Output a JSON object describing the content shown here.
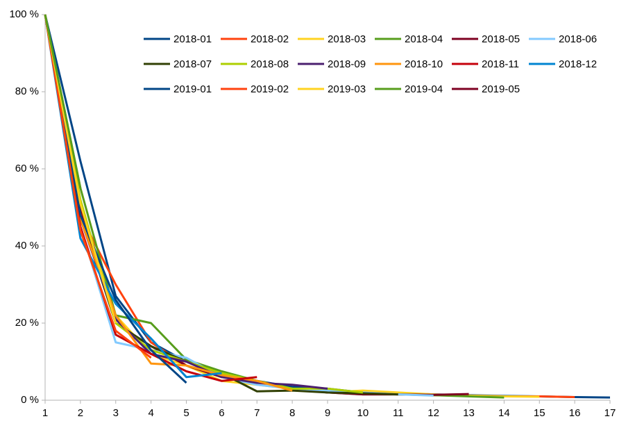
{
  "chart_data": {
    "type": "line",
    "x": [
      1,
      2,
      3,
      4,
      5,
      6,
      7,
      8,
      9,
      10,
      11,
      12,
      13,
      14,
      15,
      16,
      17
    ],
    "xlim": [
      1,
      17
    ],
    "xticks": [
      1,
      2,
      3,
      4,
      5,
      6,
      7,
      8,
      9,
      10,
      11,
      12,
      13,
      14,
      15,
      16,
      17
    ],
    "ylim": [
      0,
      100
    ],
    "yticks": [
      {
        "value": 0,
        "label": "0 %"
      },
      {
        "value": 20,
        "label": "20 %"
      },
      {
        "value": 40,
        "label": "40 %"
      },
      {
        "value": 60,
        "label": "60 %"
      },
      {
        "value": 80,
        "label": "80 %"
      },
      {
        "value": 100,
        "label": "100 %"
      }
    ],
    "grid": false,
    "legend": "top-right",
    "series": [
      {
        "name": "2018-01",
        "color": "#004586",
        "values": [
          100,
          62,
          27,
          15,
          10,
          7,
          5,
          3.5,
          3,
          2,
          1.8,
          1.5,
          1.3,
          1.1,
          1,
          0.8,
          0.7
        ]
      },
      {
        "name": "2018-02",
        "color": "#ff420e",
        "values": [
          100,
          48,
          30,
          15,
          9,
          6,
          4.5,
          3,
          2,
          1.8,
          1.5,
          1.3,
          1.2,
          1,
          1,
          0.8,
          null
        ]
      },
      {
        "name": "2018-03",
        "color": "#ffd320",
        "values": [
          100,
          50,
          22,
          12,
          9,
          5,
          4,
          3,
          2,
          2.5,
          2,
          1.5,
          1.2,
          1,
          0.9,
          null,
          null
        ]
      },
      {
        "name": "2018-04",
        "color": "#579d1c",
        "values": [
          100,
          55,
          22,
          20,
          10.5,
          7.5,
          5,
          3,
          2,
          1.5,
          1.5,
          1.3,
          1,
          0.7,
          null,
          null,
          null
        ]
      },
      {
        "name": "2018-05",
        "color": "#7e0021",
        "values": [
          100,
          50,
          20,
          14,
          9,
          6,
          5,
          3,
          2,
          1.5,
          1.5,
          1.4,
          1.6,
          null,
          null,
          null,
          null
        ]
      },
      {
        "name": "2018-06",
        "color": "#83caff",
        "values": [
          100,
          45,
          15,
          13,
          11,
          6,
          4,
          3,
          2.5,
          2,
          1.5,
          1.2,
          null,
          null,
          null,
          null,
          null
        ]
      },
      {
        "name": "2018-07",
        "color": "#314004",
        "values": [
          100,
          48,
          20,
          14,
          10,
          7,
          2.3,
          2.5,
          2,
          1.8,
          1.5,
          null,
          null,
          null,
          null,
          null,
          null
        ]
      },
      {
        "name": "2018-08",
        "color": "#aecf00",
        "values": [
          100,
          52,
          20,
          13,
          10,
          7,
          5,
          3,
          3,
          2,
          null,
          null,
          null,
          null,
          null,
          null,
          null
        ]
      },
      {
        "name": "2018-09",
        "color": "#4b1f6f",
        "values": [
          100,
          47,
          21,
          12,
          10,
          6,
          4.5,
          4,
          3,
          null,
          null,
          null,
          null,
          null,
          null,
          null,
          null
        ]
      },
      {
        "name": "2018-10",
        "color": "#ff950e",
        "values": [
          100,
          47,
          22,
          9.5,
          9,
          6.5,
          5,
          2.5,
          null,
          null,
          null,
          null,
          null,
          null,
          null,
          null,
          null
        ]
      },
      {
        "name": "2018-11",
        "color": "#c5000b",
        "values": [
          100,
          45,
          17,
          12,
          7.5,
          5,
          6,
          null,
          null,
          null,
          null,
          null,
          null,
          null,
          null,
          null,
          null
        ]
      },
      {
        "name": "2018-12",
        "color": "#0084d1",
        "values": [
          100,
          42,
          25,
          16,
          6,
          7,
          null,
          null,
          null,
          null,
          null,
          null,
          null,
          null,
          null,
          null,
          null
        ]
      },
      {
        "name": "2019-01",
        "color": "#004586",
        "values": [
          100,
          48,
          26,
          13,
          4.5,
          null,
          null,
          null,
          null,
          null,
          null,
          null,
          null,
          null,
          null,
          null,
          null
        ]
      },
      {
        "name": "2019-02",
        "color": "#ff420e",
        "values": [
          100,
          44,
          18,
          11,
          null,
          null,
          null,
          null,
          null,
          null,
          null,
          null,
          null,
          null,
          null,
          null,
          null
        ]
      },
      {
        "name": "2019-03",
        "color": "#ffd320",
        "values": [
          100,
          51,
          20,
          null,
          null,
          null,
          null,
          null,
          null,
          null,
          null,
          null,
          null,
          null,
          null,
          null,
          null
        ]
      },
      {
        "name": "2019-04",
        "color": "#579d1c",
        "values": [
          100,
          55,
          null,
          null,
          null,
          null,
          null,
          null,
          null,
          null,
          null,
          null,
          null,
          null,
          null,
          null,
          null
        ]
      },
      {
        "name": "2019-05",
        "color": "#7e0021",
        "values": [
          100,
          null,
          null,
          null,
          null,
          null,
          null,
          null,
          null,
          null,
          null,
          null,
          null,
          null,
          null,
          null,
          null
        ]
      }
    ]
  }
}
